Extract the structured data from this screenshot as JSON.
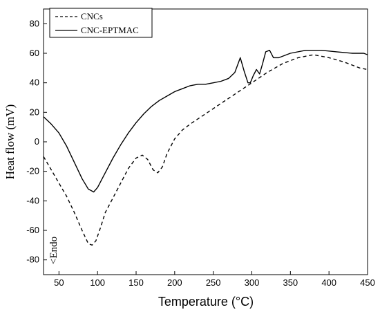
{
  "chart_data": {
    "type": "line",
    "title": "",
    "xlabel": "Temperature (°C)",
    "ylabel": "Heat flow (mV)",
    "xlim": [
      30,
      450
    ],
    "ylim": [
      -90,
      90
    ],
    "xticks": [
      50,
      100,
      150,
      200,
      250,
      300,
      350,
      400,
      450
    ],
    "yticks": [
      -80,
      -60,
      -40,
      -20,
      0,
      20,
      40,
      60,
      80
    ],
    "grid": false,
    "legend_position": "top-left",
    "annotation": "<Endo",
    "series": [
      {
        "name": "CNCs",
        "style": "dashed",
        "color": "#000000",
        "x": [
          30,
          40,
          50,
          60,
          70,
          80,
          88,
          93,
          98,
          104,
          110,
          120,
          130,
          140,
          150,
          158,
          165,
          172,
          178,
          184,
          190,
          200,
          210,
          220,
          240,
          260,
          280,
          300,
          320,
          340,
          360,
          380,
          400,
          420,
          440,
          450
        ],
        "y": [
          -10,
          -19,
          -28,
          -37,
          -48,
          -60,
          -69,
          -70,
          -67,
          -58,
          -48,
          -38,
          -28,
          -18,
          -11,
          -9,
          -12,
          -19,
          -21,
          -17,
          -8,
          2,
          8,
          12,
          19,
          26,
          33,
          40,
          47,
          53,
          57,
          59,
          57,
          54,
          50,
          49
        ]
      },
      {
        "name": "CNC-EPTMAC",
        "style": "solid",
        "color": "#000000",
        "x": [
          30,
          40,
          50,
          60,
          70,
          80,
          88,
          95,
          100,
          110,
          120,
          130,
          140,
          150,
          160,
          170,
          180,
          190,
          200,
          210,
          220,
          230,
          240,
          250,
          260,
          270,
          278,
          285,
          290,
          295,
          298,
          302,
          306,
          310,
          314,
          318,
          323,
          328,
          335,
          350,
          370,
          390,
          410,
          430,
          445,
          450
        ],
        "y": [
          17,
          12,
          6,
          -3,
          -14,
          -25,
          -32,
          -34,
          -31,
          -21,
          -11,
          -2,
          6,
          13,
          19,
          24,
          28,
          31,
          34,
          36,
          38,
          39,
          39,
          40,
          41,
          43,
          47,
          57,
          48,
          40,
          40,
          45,
          49,
          46,
          53,
          61,
          62,
          57,
          57,
          60,
          62,
          62,
          61,
          60,
          60,
          59
        ]
      }
    ]
  }
}
